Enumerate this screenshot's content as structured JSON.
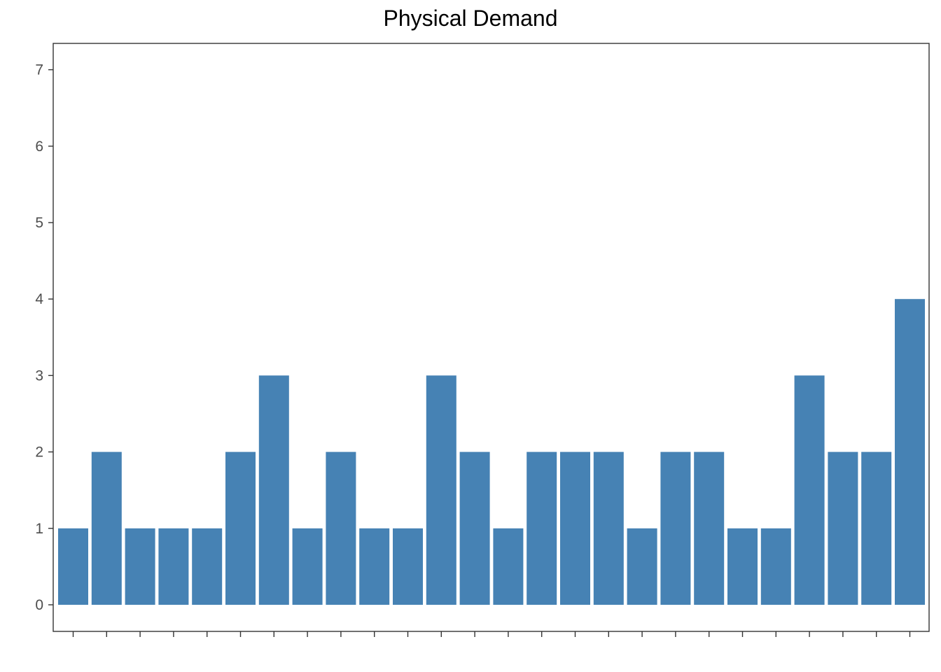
{
  "chart_data": {
    "type": "bar",
    "title": "Physical Demand",
    "xlabel": "",
    "ylabel": "",
    "categories": [
      "",
      "",
      "",
      "",
      "",
      "",
      "",
      "",
      "",
      "",
      "",
      "",
      "",
      "",
      "",
      "",
      "",
      "",
      "",
      "",
      "",
      "",
      "",
      "",
      "",
      ""
    ],
    "values": [
      1,
      2,
      1,
      1,
      1,
      2,
      3,
      1,
      2,
      1,
      1,
      3,
      2,
      1,
      2,
      2,
      2,
      1,
      2,
      2,
      1,
      1,
      3,
      2,
      2,
      4
    ],
    "ylim": [
      0,
      7
    ],
    "yticks": [
      0,
      1,
      2,
      3,
      4,
      5,
      6,
      7
    ],
    "grid": false,
    "legend": "none",
    "bar_color": "#4682b4",
    "axis_color": "#333333",
    "tick_label_color": "#4d4d4d"
  }
}
